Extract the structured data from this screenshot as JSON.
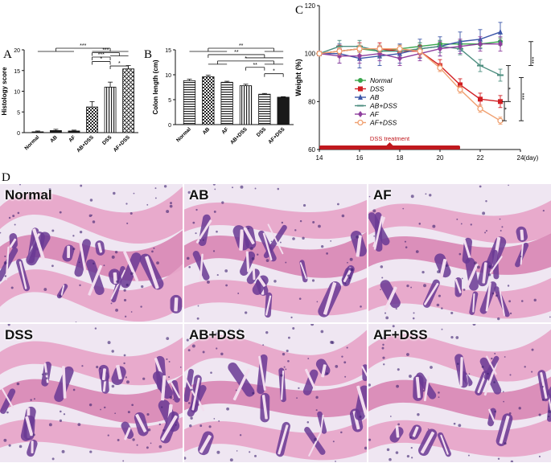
{
  "panels": {
    "a": "A",
    "b": "B",
    "c": "C",
    "d": "D"
  },
  "chart_data": [
    {
      "type": "bar",
      "ylabel": "Histology score",
      "ylim": [
        0,
        20
      ],
      "yticks": [
        "0",
        "5",
        "10",
        "15",
        "20"
      ],
      "categories": [
        "Normal",
        "AB",
        "AF",
        "AB+DSS",
        "DSS",
        "AF+DSS"
      ],
      "values": [
        0.2,
        0.5,
        0.4,
        6.2,
        11.0,
        15.4
      ],
      "errors": [
        0.2,
        0.3,
        0.2,
        1.3,
        1.2,
        0.8
      ],
      "patterns": [
        "solid",
        "solid",
        "solid",
        "checker",
        "vstripe",
        "xhatch"
      ],
      "significance": [
        {
          "label": "***",
          "left": [
            0,
            1,
            2
          ],
          "right": [
            3,
            4,
            5
          ]
        },
        {
          "label": "***",
          "left": [
            3
          ],
          "right": [
            4,
            5
          ]
        },
        {
          "label": "***",
          "left": [
            3
          ],
          "right": [
            4
          ]
        },
        {
          "label": "*",
          "left": [
            3
          ],
          "right": [
            4
          ]
        },
        {
          "label": "*",
          "left": [
            4
          ],
          "right": [
            5
          ]
        }
      ]
    },
    {
      "type": "bar",
      "ylabel": "Colon length (cm)",
      "ylim": [
        0,
        15
      ],
      "yticks": [
        "0",
        "5",
        "10",
        "15"
      ],
      "categories": [
        "Normal",
        "AB",
        "AF",
        "AB+DSS",
        "DSS",
        "AF+DSS"
      ],
      "values": [
        8.8,
        9.6,
        8.5,
        7.8,
        6.1,
        5.5
      ],
      "errors": [
        0.3,
        0.3,
        0.2,
        0.3,
        0.15,
        0.1
      ],
      "patterns": [
        "hstripe",
        "checker",
        "hstripe",
        "vstripe",
        "hstripe",
        "solid"
      ],
      "significance": [
        {
          "label": "**",
          "left": [
            0,
            1,
            2
          ],
          "right": [
            4,
            5
          ]
        },
        {
          "label": "**",
          "left": [
            1
          ],
          "right": [
            3,
            4,
            5
          ]
        },
        {
          "label": "*",
          "left": [
            1,
            2
          ],
          "right": [
            4,
            5
          ]
        },
        {
          "label": "**",
          "left": [
            3
          ],
          "right": [
            4
          ]
        },
        {
          "label": "*",
          "left": [
            4
          ],
          "right": [
            5
          ]
        }
      ]
    },
    {
      "type": "line",
      "ylabel": "Weight (%)",
      "xunit": "(day)",
      "xlim": [
        14,
        24
      ],
      "ylim": [
        60,
        120
      ],
      "xticks": [
        "14",
        "16",
        "18",
        "20",
        "22",
        "24"
      ],
      "yticks": [
        "60",
        "80",
        "100",
        "120"
      ],
      "annotation": "DSS treatment",
      "annotation_range": [
        14,
        21
      ],
      "x": [
        14,
        15,
        16,
        17,
        18,
        19,
        20,
        21,
        22,
        23
      ],
      "series": [
        {
          "name": "Normal",
          "color": "#3aa64c",
          "marker": "circle",
          "values": [
            100,
            101,
            102,
            101,
            102,
            103,
            104,
            104,
            104,
            105
          ],
          "err": 1.5
        },
        {
          "name": "DSS",
          "color": "#d11f24",
          "marker": "square",
          "values": [
            100,
            101,
            102,
            102,
            101,
            101,
            95,
            87,
            81,
            80
          ],
          "err": 2.5
        },
        {
          "name": "AB",
          "color": "#3c56a8",
          "marker": "triangle",
          "values": [
            100,
            100,
            98,
            99,
            100,
            102,
            103,
            105,
            106,
            109
          ],
          "err": 4
        },
        {
          "name": "AB+DSS",
          "color": "#4e8f80",
          "marker": "dash",
          "values": [
            100,
            103,
            103,
            101,
            101,
            102,
            103,
            102,
            95,
            91
          ],
          "err": 2.5
        },
        {
          "name": "AF",
          "color": "#8f3f9e",
          "marker": "diamond",
          "values": [
            100,
            99,
            99,
            100,
            98,
            100,
            102,
            103,
            104,
            104
          ],
          "err": 3
        },
        {
          "name": "AF+DSS",
          "color": "#f0a070",
          "marker": "hollow-circle",
          "values": [
            100,
            101,
            102,
            102,
            102,
            101,
            94,
            85,
            77,
            72
          ],
          "err": 1.5
        }
      ],
      "significance": [
        "***",
        "*",
        "*",
        "***"
      ]
    }
  ],
  "histology": [
    {
      "label": "Normal"
    },
    {
      "label": "AB"
    },
    {
      "label": "AF"
    },
    {
      "label": "DSS"
    },
    {
      "label": "AB+DSS"
    },
    {
      "label": "AF+DSS"
    }
  ]
}
